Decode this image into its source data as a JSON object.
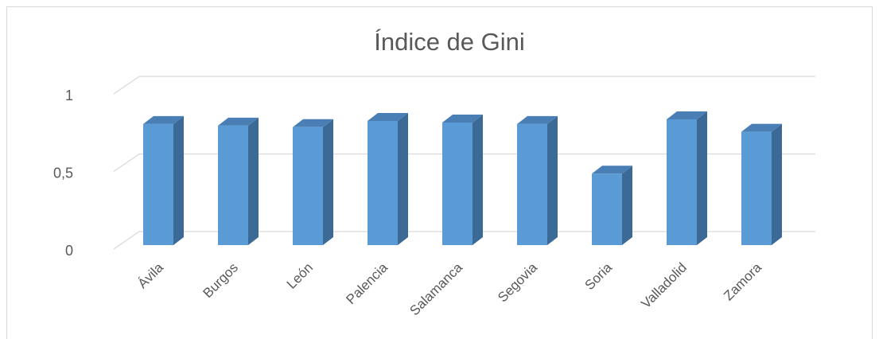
{
  "chart_data": {
    "type": "bar3d",
    "title": "Índice de Gini",
    "categories": [
      "Ávila",
      "Burgos",
      "León",
      "Palencia",
      "Salamanca",
      "Segovia",
      "Soria",
      "Valladolid",
      "Zamora"
    ],
    "values": [
      0.78,
      0.77,
      0.76,
      0.8,
      0.79,
      0.78,
      0.46,
      0.81,
      0.73
    ],
    "color": "#5b9bd5",
    "ylim": [
      0,
      1
    ],
    "yticks": [
      0,
      {
        "value": 0.5,
        "label": "0,5"
      },
      1
    ],
    "grid": true
  }
}
